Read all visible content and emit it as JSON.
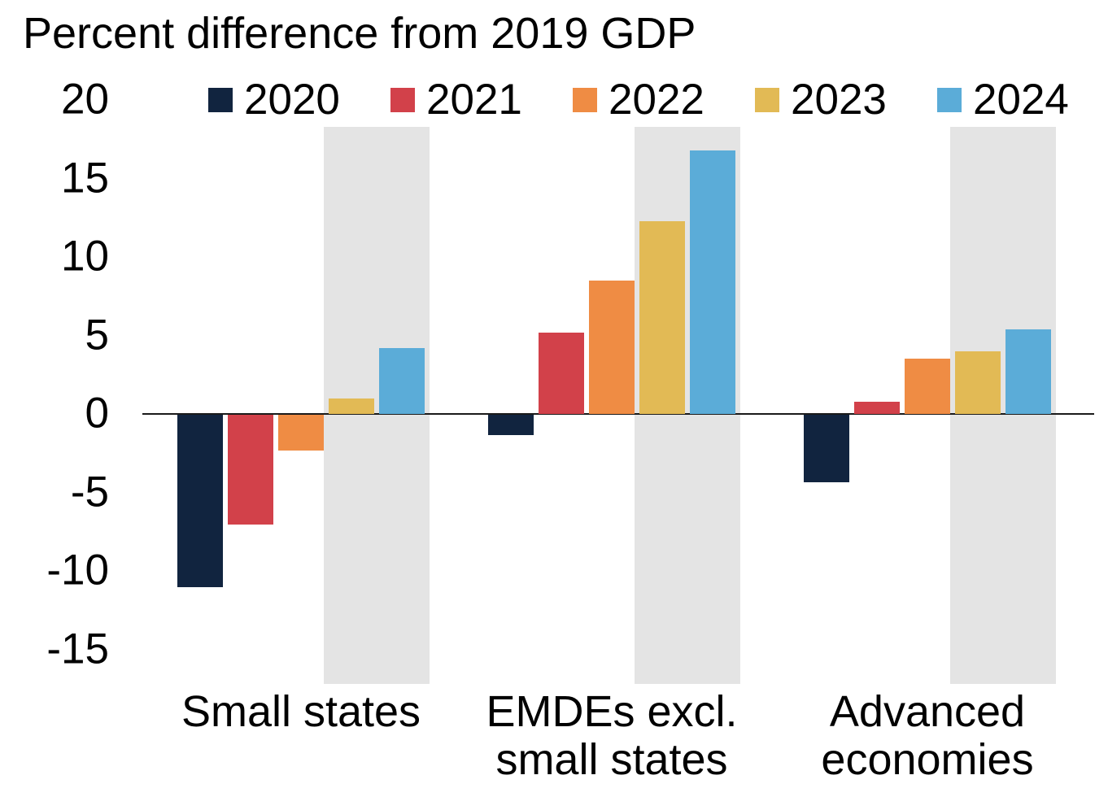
{
  "chart_data": {
    "type": "bar",
    "title": "Percent difference from 2019 GDP",
    "xlabel": "",
    "ylabel": "Percent difference from 2019 GDP",
    "categories": [
      "Small states",
      "EMDEs excl. small states",
      "Advanced economies"
    ],
    "category_lines": [
      [
        "Small states"
      ],
      [
        "EMDEs excl.",
        "small states"
      ],
      [
        "Advanced",
        "economies"
      ]
    ],
    "series": [
      {
        "name": "2020",
        "color": "#11243F",
        "values": [
          -11.0,
          -1.3,
          -4.3
        ]
      },
      {
        "name": "2021",
        "color": "#D2414A",
        "values": [
          -7.0,
          5.2,
          0.8
        ]
      },
      {
        "name": "2022",
        "color": "#EF8C44",
        "values": [
          -2.3,
          8.5,
          3.5
        ]
      },
      {
        "name": "2023",
        "color": "#E2BA55",
        "values": [
          1.0,
          12.3,
          4.0
        ]
      },
      {
        "name": "2024",
        "color": "#5BACD8",
        "values": [
          4.2,
          16.8,
          5.4
        ]
      }
    ],
    "yticks": [
      20,
      15,
      10,
      5,
      0,
      -5,
      -10,
      -15
    ],
    "ylim": [
      -17.5,
      20
    ],
    "grid": false,
    "legend_position": "top",
    "forecast_band": {
      "covers_series": [
        "2023",
        "2024"
      ],
      "color": "#E4E4E4",
      "top_value": 18.3,
      "bottom_value": -17.2
    }
  }
}
